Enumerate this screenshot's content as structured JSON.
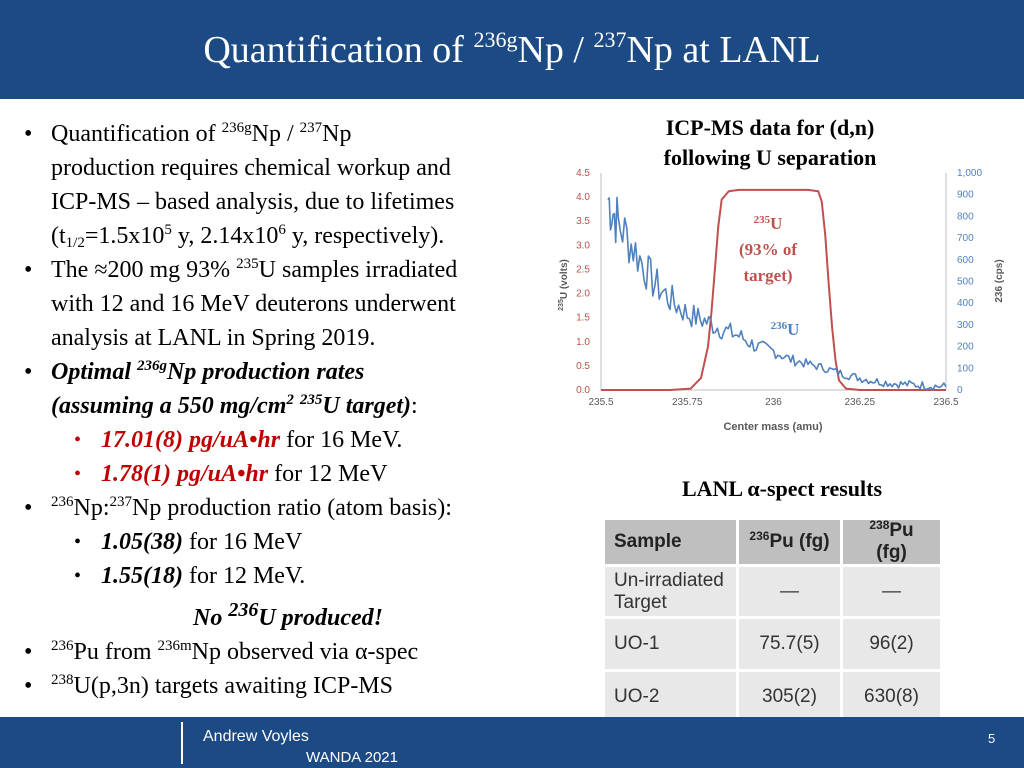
{
  "slide": {
    "title_pre": "Quantification of ",
    "title_sup1": "236g",
    "title_mid": "Np / ",
    "title_sup2": "237",
    "title_post": "Np at LANL"
  },
  "bullets": {
    "b1_a": "Quantification of ",
    "b1_sup1": "236g",
    "b1_b": "Np / ",
    "b1_sup2": "237",
    "b1_c": "Np",
    "b1_line2": "production requires chemical workup and",
    "b1_line3": "ICP-MS – based analysis, due to lifetimes",
    "b1_l4_a": "(t",
    "b1_l4_sub": "1/2",
    "b1_l4_b": "=1.5x10",
    "b1_l4_sup1": "5",
    "b1_l4_c": " y, 2.14x10",
    "b1_l4_sup2": "6",
    "b1_l4_d": " y, respectively).",
    "b2_a": "The ≈200 mg 93% ",
    "b2_sup": "235",
    "b2_b": "U samples irradiated",
    "b2_line2": "with 12 and 16 MeV deuterons underwent",
    "b2_line3": "analysis at LANL in Spring 2019.",
    "b3_a": "Optimal ",
    "b3_sup": "236g",
    "b3_b": "Np production rates",
    "b3_l2_a": "(assuming a 550 mg/cm",
    "b3_l2_sup1": "2",
    "b3_l2_sup2": "235",
    "b3_l2_b": "U target)",
    "b3_l2_colon": ":",
    "s1_red": " 17.01(8) pg/uA•hr",
    "s1_rest": " for 16 MeV.",
    "s2_red": "1.78(1) pg/uA•hr",
    "s2_rest": " for 12 MeV",
    "b4_sup1": "236",
    "b4_a": "Np:",
    "b4_sup2": "237",
    "b4_b": "Np production ratio (atom basis):",
    "s3_bold": "1.05(38)",
    "s3_rest": " for 16 MeV",
    "s4_bold": "1.55(18)",
    "s4_rest": " for 12 MeV.",
    "no_a": "No ",
    "no_sup": "236",
    "no_b": "U produced!",
    "b5_sup1": "236",
    "b5_a": "Pu from ",
    "b5_sup2": "236m",
    "b5_b": "Np observed via α-spec",
    "b6_sup": "238",
    "b6_a": "U(p,3n) targets awaiting ICP-MS",
    "bullet_glyph": "•"
  },
  "chart_caption": {
    "line1": "ICP-MS data for (d,n)",
    "line2": "following U separation"
  },
  "chart_data": {
    "type": "line",
    "xlabel": "Center mass (amu)",
    "ylabel_left_sup": "235",
    "ylabel_left": "U (volts)",
    "ylabel_right": "236 (cps)",
    "xlim": [
      235.5,
      236.5
    ],
    "ylim_left": [
      0,
      4.5
    ],
    "ylim_right": [
      0,
      1000
    ],
    "x_ticks": [
      "235.5",
      "235.75",
      "236",
      "236.25",
      "236.5"
    ],
    "y_left_ticks": [
      "0.0",
      "0.5",
      "1.0",
      "1.5",
      "2.0",
      "2.5",
      "3.0",
      "3.5",
      "4.0",
      "4.5"
    ],
    "y_right_ticks": [
      "0",
      "100",
      "200",
      "300",
      "400",
      "500",
      "600",
      "700",
      "800",
      "900",
      "1,000"
    ],
    "series": [
      {
        "axis": "left",
        "color": "#c0504d",
        "x": [
          235.5,
          235.7,
          235.76,
          235.79,
          235.81,
          235.82,
          235.83,
          235.84,
          235.85,
          235.87,
          235.9,
          235.95,
          236.0,
          236.05,
          236.1,
          236.13,
          236.14,
          236.15,
          236.16,
          236.17,
          236.18,
          236.19,
          236.21,
          236.25,
          236.5
        ],
        "y": [
          0.0,
          0.0,
          0.03,
          0.25,
          0.9,
          1.6,
          2.5,
          3.4,
          3.95,
          4.12,
          4.15,
          4.15,
          4.15,
          4.15,
          4.15,
          4.12,
          3.9,
          3.2,
          2.2,
          1.3,
          0.6,
          0.2,
          0.03,
          0.0,
          0.0
        ]
      },
      {
        "axis": "right",
        "color": "#4f81bd",
        "x": [
          235.52,
          235.55,
          235.6,
          235.65,
          235.7,
          235.75,
          235.8,
          235.85,
          235.9,
          235.95,
          236.0,
          236.05,
          236.1,
          236.15,
          236.2,
          236.25,
          236.3,
          236.35,
          236.4,
          236.45,
          236.5
        ],
        "y": [
          880,
          770,
          640,
          500,
          420,
          350,
          320,
          280,
          250,
          200,
          180,
          140,
          120,
          100,
          75,
          55,
          40,
          30,
          25,
          20,
          15
        ]
      }
    ],
    "annotations": {
      "u235_sup": "235",
      "u235_a": "U",
      "u235_b": "(93% of",
      "u235_c": "target)",
      "u236_sup": "236",
      "u236_a": "U"
    }
  },
  "table": {
    "caption": "LANL α-spect results",
    "headers": {
      "sample": "Sample",
      "pu236_sup": "236",
      "pu236": "Pu (fg)",
      "pu238_sup": "238",
      "pu238": "Pu (fg)"
    },
    "rows": [
      {
        "sample_l1": "Un-irradiated",
        "sample_l2": "Target",
        "pu236": "—",
        "pu238": "—"
      },
      {
        "sample": "UO-1",
        "pu236": "75.7(5)",
        "pu238": "96(2)"
      },
      {
        "sample": "UO-2",
        "pu236": "305(2)",
        "pu238": "630(8)"
      }
    ]
  },
  "footer": {
    "author": "Andrew Voyles",
    "conference": "WANDA 2021",
    "page_number": "5"
  },
  "colors": {
    "brand_blue": "#1b4a84",
    "highlight_red": "#c00000",
    "u235_curve": "#c0504d",
    "u236_curve": "#4f81bd"
  }
}
